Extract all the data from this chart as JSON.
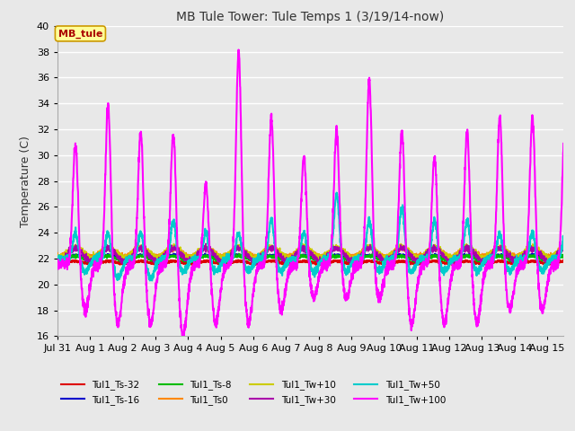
{
  "title": "MB Tule Tower: Tule Temps 1 (3/19/14-now)",
  "ylabel": "Temperature (C)",
  "ylim": [
    16,
    40
  ],
  "xlim": [
    0,
    15.5
  ],
  "background_color": "#e8e8e8",
  "plot_bg_color": "#e8e8e8",
  "grid_color": "#ffffff",
  "series": [
    {
      "label": "Tul1_Ts-32",
      "color": "#dd0000",
      "lw": 1.5,
      "zorder": 2
    },
    {
      "label": "Tul1_Ts-16",
      "color": "#0000cc",
      "lw": 1.5,
      "zorder": 3
    },
    {
      "label": "Tul1_Ts-8",
      "color": "#00bb00",
      "lw": 1.2,
      "zorder": 4
    },
    {
      "label": "Tul1_Ts0",
      "color": "#ff8800",
      "lw": 1.2,
      "zorder": 5
    },
    {
      "label": "Tul1_Tw+10",
      "color": "#cccc00",
      "lw": 1.2,
      "zorder": 6
    },
    {
      "label": "Tul1_Tw+30",
      "color": "#aa00aa",
      "lw": 1.2,
      "zorder": 7
    },
    {
      "label": "Tul1_Tw+50",
      "color": "#00cccc",
      "lw": 1.5,
      "zorder": 8
    },
    {
      "label": "Tul1_Tw+100",
      "color": "#ff00ff",
      "lw": 1.5,
      "zorder": 9
    }
  ],
  "x_tick_labels": [
    "Jul 31",
    "Aug 1",
    "Aug 2",
    "Aug 3",
    "Aug 4",
    "Aug 5",
    "Aug 6",
    "Aug 7",
    "Aug 8",
    "Aug 9",
    "Aug 10",
    "Aug 11",
    "Aug 12",
    "Aug 13",
    "Aug 14",
    "Aug 15"
  ],
  "x_tick_positions": [
    0,
    1,
    2,
    3,
    4,
    5,
    6,
    7,
    8,
    9,
    10,
    11,
    12,
    13,
    14,
    15
  ],
  "y_ticks": [
    16,
    18,
    20,
    22,
    24,
    26,
    28,
    30,
    32,
    34,
    36,
    38,
    40
  ],
  "annotation_text": "MB_tule",
  "magenta_peaks": [
    31,
    34,
    32,
    32,
    28,
    38,
    33,
    30,
    32,
    36,
    32,
    30,
    32,
    33,
    33,
    33
  ],
  "magenta_troughs": [
    18,
    17,
    17,
    16,
    17,
    17,
    18,
    19,
    19,
    19,
    17,
    17,
    17,
    18,
    18,
    18
  ],
  "cyan_peaks": [
    24,
    24,
    24,
    25,
    24,
    24,
    25,
    24,
    27,
    25,
    26,
    25,
    25,
    24,
    24,
    24
  ],
  "cyan_troughs": [
    21,
    20.5,
    20.5,
    21,
    21,
    21,
    21,
    21,
    21,
    21,
    21,
    21,
    21,
    21,
    21,
    21
  ]
}
